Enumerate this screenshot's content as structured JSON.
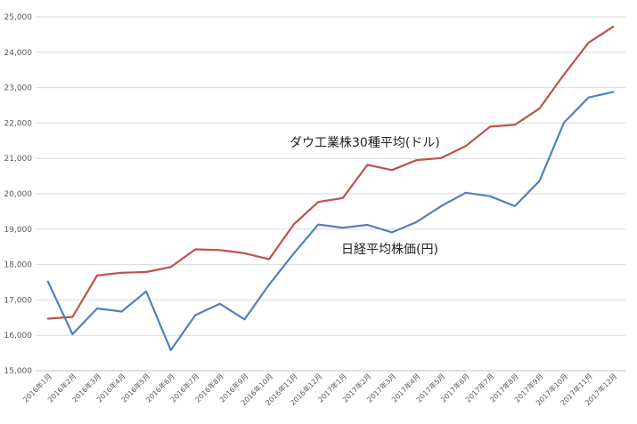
{
  "chart_data": {
    "type": "line",
    "title": "",
    "xlabel": "",
    "ylabel": "",
    "grid": true,
    "legend": "inline",
    "ylim": [
      15000,
      25000
    ],
    "yticks": [
      15000,
      16000,
      17000,
      18000,
      19000,
      20000,
      21000,
      22000,
      23000,
      24000,
      25000
    ],
    "ytick_labels": [
      "15,000",
      "16,000",
      "17,000",
      "18,000",
      "19,000",
      "20,000",
      "21,000",
      "22,000",
      "23,000",
      "24,000",
      "25,000"
    ],
    "categories": [
      "2016年1月",
      "2016年2月",
      "2016年3月",
      "2016年4月",
      "2016年5月",
      "2016年6月",
      "2016年7月",
      "2016年8月",
      "2016年9月",
      "2016年10月",
      "2016年11月",
      "2016年12月",
      "2017年1月",
      "2017年2月",
      "2017年3月",
      "2017年4月",
      "2017年5月",
      "2017年6月",
      "2017年7月",
      "2017年8月",
      "2017年9月",
      "2017年10月",
      "2017年11月",
      "2017年12月"
    ],
    "series": [
      {
        "name": "ダウ工業株30種平均(ドル)",
        "color": "#c0504d",
        "values": [
          16470,
          16520,
          17690,
          17770,
          17790,
          17930,
          18430,
          18410,
          18320,
          18150,
          19130,
          19770,
          19880,
          20820,
          20670,
          20950,
          21010,
          21350,
          21900,
          21950,
          22410,
          23370,
          24270,
          24720
        ]
      },
      {
        "name": "日経平均株価(円)",
        "color": "#4f81bd",
        "values": [
          17520,
          16030,
          16760,
          16670,
          17240,
          15580,
          16570,
          16890,
          16450,
          17430,
          18310,
          19130,
          19040,
          19120,
          18910,
          19200,
          19650,
          20030,
          19930,
          19650,
          20360,
          22010,
          22720,
          22880
        ]
      }
    ]
  }
}
